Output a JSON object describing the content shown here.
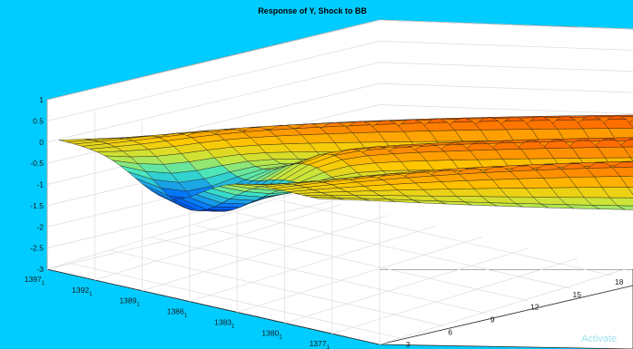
{
  "chart_data": {
    "type": "surface",
    "title": "Response of Y, Shock to BB",
    "z_ticks": [
      "1",
      "0.5",
      "0",
      "-0.5",
      "-1",
      "-1.5",
      "-2",
      "-2.5",
      "-3"
    ],
    "zlim": [
      -3,
      1
    ],
    "date_ticks": [
      "1397",
      "1392",
      "1389",
      "1386",
      "1383",
      "1380",
      "1377",
      "1374"
    ],
    "date_tick_suffix": "1",
    "horizon_ticks": [
      "3",
      "6",
      "9",
      "12",
      "15",
      "18"
    ],
    "grid": true,
    "colormap": "jet",
    "surface_z_range": [
      -1.3,
      1.1
    ]
  },
  "watermark": "Activate"
}
